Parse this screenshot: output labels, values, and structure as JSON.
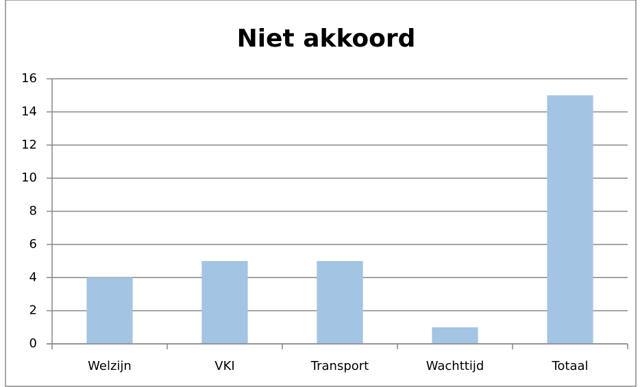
{
  "chart_data": {
    "type": "bar",
    "title": "Niet akkoord",
    "categories": [
      "Welzijn",
      "VKI",
      "Transport",
      "Wachttijd",
      "Totaal"
    ],
    "values": [
      4,
      5,
      5,
      1,
      15
    ],
    "color": "#a3c4e2",
    "ylim": [
      0,
      16
    ],
    "yticks": [
      0,
      2,
      4,
      6,
      8,
      10,
      12,
      14,
      16
    ],
    "grid": true
  }
}
